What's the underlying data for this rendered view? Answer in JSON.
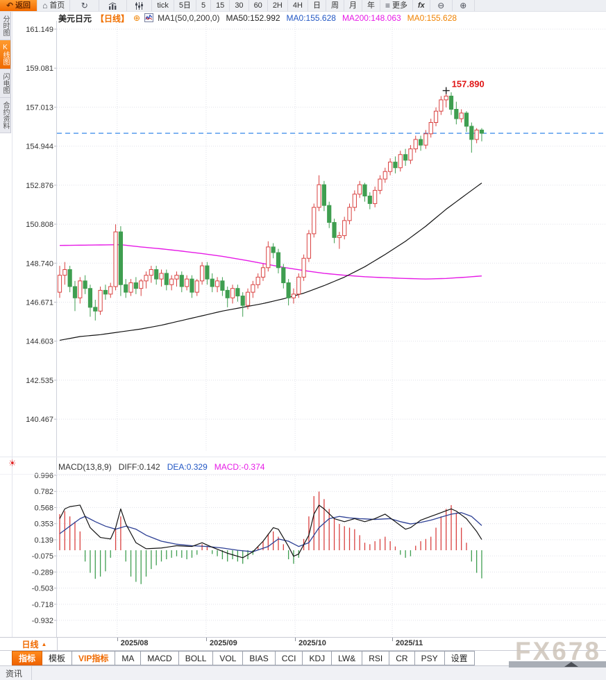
{
  "toolbar": {
    "back": "返回",
    "home": "首页",
    "periods": [
      "tick",
      "5日",
      "5",
      "15",
      "30",
      "60",
      "2H",
      "4H",
      "日",
      "周",
      "月",
      "年"
    ],
    "more": "更多",
    "fx": "fx"
  },
  "sidebar": {
    "tabs": [
      {
        "label": "分时图",
        "active": false
      },
      {
        "label": "K线图",
        "active": true
      },
      {
        "label": "闪电图",
        "active": false
      },
      {
        "label": "合约资料",
        "active": false
      }
    ]
  },
  "header": {
    "symbol": "美元日元",
    "period": "【日线】",
    "ma_items": [
      {
        "text": "MA1(50,0,200,0)",
        "color": "#333333"
      },
      {
        "text": "MA50:152.992",
        "color": "#222222"
      },
      {
        "text": "MA0:155.628",
        "color": "#2257c4"
      },
      {
        "text": "MA200:148.063",
        "color": "#e61ae6"
      },
      {
        "text": "MA0:155.628",
        "color": "#f08200"
      }
    ]
  },
  "macd_header": {
    "items": [
      {
        "text": "MACD(13,8,9)",
        "color": "#333333"
      },
      {
        "text": "DIFF:0.142",
        "color": "#333333"
      },
      {
        "text": "DEA:0.329",
        "color": "#2257c4"
      },
      {
        "text": "MACD:-0.374",
        "color": "#e61ae6"
      }
    ]
  },
  "xaxis": {
    "period_label": "日线",
    "months": [
      {
        "label": "2025/08",
        "i": 11.3
      },
      {
        "label": "2025/09",
        "i": 28.8
      },
      {
        "label": "2025/10",
        "i": 46.3
      },
      {
        "label": "2025/11",
        "i": 65.4
      }
    ]
  },
  "indicator_tabs": [
    {
      "label": "指标",
      "state": "active"
    },
    {
      "label": "模板",
      "state": ""
    },
    {
      "label": "VIP指标",
      "state": "vip"
    },
    {
      "label": "MA",
      "state": ""
    },
    {
      "label": "MACD",
      "state": ""
    },
    {
      "label": "BOLL",
      "state": ""
    },
    {
      "label": "VOL",
      "state": ""
    },
    {
      "label": "BIAS",
      "state": ""
    },
    {
      "label": "CCI",
      "state": ""
    },
    {
      "label": "KDJ",
      "state": ""
    },
    {
      "label": "LW&",
      "state": ""
    },
    {
      "label": "RSI",
      "state": ""
    },
    {
      "label": "CR",
      "state": ""
    },
    {
      "label": "PSY",
      "state": ""
    },
    {
      "label": "设置",
      "state": ""
    }
  ],
  "bottom": {
    "news": "资讯",
    "watermark": "FX678"
  },
  "chart_data": {
    "type": "candlestick+macd",
    "title": "美元日元 日线 (USD/JPY daily)",
    "price_ticks": [
      "161.149",
      "159.081",
      "157.013",
      "154.944",
      "152.876",
      "150.808",
      "148.740",
      "146.671",
      "144.603",
      "142.535",
      "140.467"
    ],
    "current_price": 155.628,
    "peak_label": "157.890",
    "peak_index": 76,
    "peak_price": 157.89,
    "colors": {
      "up": "#d9403f",
      "down": "#3f9e50",
      "ma50": "#111111",
      "ma200": "#e61ae6",
      "diff": "#111111",
      "dea": "#2c3f94",
      "current": "#1d7be5"
    },
    "candles": [
      [
        147.2,
        148.6,
        146.9,
        148.1
      ],
      [
        148.1,
        148.8,
        147.6,
        148.4
      ],
      [
        148.4,
        148.6,
        147.2,
        147.5
      ],
      [
        147.5,
        147.8,
        146.2,
        146.9
      ],
      [
        146.9,
        148.0,
        146.6,
        147.8
      ],
      [
        147.8,
        148.1,
        147.1,
        147.4
      ],
      [
        147.4,
        147.6,
        145.9,
        146.4
      ],
      [
        146.4,
        146.8,
        145.7,
        146.2
      ],
      [
        146.2,
        147.5,
        146.0,
        147.3
      ],
      [
        147.3,
        147.6,
        146.8,
        147.1
      ],
      [
        147.1,
        147.7,
        146.9,
        147.5
      ],
      [
        147.5,
        150.8,
        147.3,
        150.4
      ],
      [
        150.4,
        150.7,
        147.0,
        147.6
      ],
      [
        147.6,
        147.9,
        146.9,
        147.2
      ],
      [
        147.2,
        147.9,
        147.0,
        147.7
      ],
      [
        147.7,
        148.0,
        147.1,
        147.4
      ],
      [
        147.4,
        147.9,
        147.0,
        147.8
      ],
      [
        147.8,
        148.3,
        147.4,
        148.1
      ],
      [
        148.1,
        148.6,
        147.7,
        148.4
      ],
      [
        148.4,
        148.6,
        147.6,
        147.9
      ],
      [
        147.9,
        148.4,
        147.5,
        148.2
      ],
      [
        148.2,
        148.4,
        147.3,
        147.6
      ],
      [
        147.6,
        148.1,
        147.3,
        147.9
      ],
      [
        147.9,
        148.3,
        147.5,
        148.1
      ],
      [
        148.1,
        148.3,
        147.2,
        147.5
      ],
      [
        147.5,
        148.1,
        147.3,
        147.9
      ],
      [
        147.9,
        148.1,
        146.9,
        147.2
      ],
      [
        147.2,
        147.9,
        147.0,
        147.8
      ],
      [
        147.8,
        148.8,
        147.6,
        148.6
      ],
      [
        148.6,
        148.8,
        147.6,
        147.9
      ],
      [
        147.9,
        148.2,
        147.2,
        147.5
      ],
      [
        147.5,
        148.0,
        147.2,
        147.8
      ],
      [
        147.8,
        148.0,
        147.0,
        147.3
      ],
      [
        147.3,
        147.5,
        146.4,
        146.9
      ],
      [
        146.9,
        147.6,
        146.6,
        147.4
      ],
      [
        147.4,
        147.6,
        146.7,
        147.0
      ],
      [
        147.0,
        147.2,
        145.9,
        146.5
      ],
      [
        146.5,
        147.4,
        146.3,
        147.2
      ],
      [
        147.2,
        147.8,
        146.9,
        147.6
      ],
      [
        147.6,
        148.2,
        147.4,
        148.0
      ],
      [
        148.0,
        148.7,
        147.8,
        148.5
      ],
      [
        148.5,
        149.9,
        148.3,
        149.6
      ],
      [
        149.6,
        149.8,
        149.0,
        149.3
      ],
      [
        149.3,
        149.5,
        148.2,
        148.5
      ],
      [
        148.5,
        148.7,
        147.4,
        147.7
      ],
      [
        147.7,
        147.9,
        146.5,
        146.9
      ],
      [
        146.9,
        147.4,
        146.6,
        147.1
      ],
      [
        147.1,
        148.2,
        146.9,
        148.0
      ],
      [
        148.0,
        149.2,
        147.8,
        149.0
      ],
      [
        149.0,
        150.5,
        148.8,
        150.3
      ],
      [
        150.3,
        151.9,
        150.1,
        151.7
      ],
      [
        151.7,
        153.4,
        151.5,
        152.9
      ],
      [
        152.9,
        153.1,
        151.5,
        151.8
      ],
      [
        151.8,
        152.0,
        150.6,
        150.9
      ],
      [
        150.9,
        151.1,
        149.8,
        150.1
      ],
      [
        150.1,
        150.4,
        149.5,
        150.2
      ],
      [
        150.2,
        151.2,
        150.0,
        151.0
      ],
      [
        151.0,
        151.9,
        150.8,
        151.7
      ],
      [
        151.7,
        152.6,
        151.5,
        152.4
      ],
      [
        152.4,
        153.1,
        152.2,
        152.9
      ],
      [
        152.9,
        153.0,
        152.0,
        152.3
      ],
      [
        152.3,
        152.5,
        151.6,
        151.9
      ],
      [
        151.9,
        152.8,
        151.7,
        152.6
      ],
      [
        152.6,
        153.4,
        152.4,
        153.2
      ],
      [
        153.2,
        153.8,
        153.0,
        153.6
      ],
      [
        153.6,
        154.3,
        153.4,
        154.1
      ],
      [
        154.1,
        154.4,
        153.5,
        153.8
      ],
      [
        153.8,
        154.7,
        153.6,
        154.5
      ],
      [
        154.5,
        154.8,
        153.9,
        154.2
      ],
      [
        154.2,
        155.0,
        154.0,
        154.8
      ],
      [
        154.8,
        155.5,
        154.6,
        155.3
      ],
      [
        155.3,
        155.5,
        154.7,
        155.0
      ],
      [
        155.0,
        155.8,
        154.8,
        155.6
      ],
      [
        155.6,
        156.4,
        155.4,
        156.2
      ],
      [
        156.2,
        157.0,
        156.0,
        156.8
      ],
      [
        156.8,
        157.6,
        156.6,
        157.4
      ],
      [
        157.4,
        157.89,
        157.0,
        157.6
      ],
      [
        157.6,
        157.8,
        156.6,
        156.9
      ],
      [
        156.9,
        157.3,
        156.1,
        156.4
      ],
      [
        156.4,
        156.9,
        156.2,
        156.7
      ],
      [
        156.7,
        156.8,
        155.7,
        156.0
      ],
      [
        156.0,
        156.2,
        154.6,
        155.3
      ],
      [
        155.3,
        155.9,
        155.1,
        155.8
      ],
      [
        155.8,
        155.9,
        155.2,
        155.628
      ]
    ],
    "ma50_anchors": [
      [
        0,
        144.65
      ],
      [
        4,
        144.85
      ],
      [
        8,
        144.95
      ],
      [
        12,
        145.1
      ],
      [
        16,
        145.25
      ],
      [
        20,
        145.45
      ],
      [
        24,
        145.7
      ],
      [
        28,
        145.95
      ],
      [
        32,
        146.2
      ],
      [
        36,
        146.4
      ],
      [
        40,
        146.6
      ],
      [
        44,
        146.85
      ],
      [
        48,
        147.15
      ],
      [
        52,
        147.55
      ],
      [
        56,
        148.0
      ],
      [
        60,
        148.55
      ],
      [
        64,
        149.2
      ],
      [
        68,
        149.9
      ],
      [
        72,
        150.7
      ],
      [
        76,
        151.6
      ],
      [
        80,
        152.4
      ],
      [
        83,
        152.992
      ]
    ],
    "ma200_anchors": [
      [
        0,
        149.68
      ],
      [
        6,
        149.7
      ],
      [
        12,
        149.72
      ],
      [
        16,
        149.6
      ],
      [
        20,
        149.5
      ],
      [
        24,
        149.38
      ],
      [
        28,
        149.25
      ],
      [
        32,
        149.1
      ],
      [
        36,
        148.92
      ],
      [
        40,
        148.72
      ],
      [
        44,
        148.52
      ],
      [
        48,
        148.35
      ],
      [
        52,
        148.2
      ],
      [
        56,
        148.1
      ],
      [
        60,
        148.02
      ],
      [
        64,
        147.97
      ],
      [
        68,
        147.93
      ],
      [
        72,
        147.9
      ],
      [
        76,
        147.93
      ],
      [
        80,
        148.0
      ],
      [
        83,
        148.063
      ]
    ],
    "macd": {
      "ticks": [
        "0.996",
        "0.782",
        "0.568",
        "0.353",
        "0.139",
        "-0.075",
        "-0.289",
        "-0.503",
        "-0.718",
        "-0.932"
      ],
      "hist": [
        0.48,
        0.52,
        0.45,
        0.38,
        0.25,
        -0.15,
        -0.3,
        -0.38,
        -0.35,
        -0.28,
        -0.1,
        0.28,
        0.45,
        -0.15,
        -0.35,
        -0.42,
        -0.45,
        -0.35,
        -0.25,
        -0.2,
        -0.15,
        -0.12,
        -0.1,
        -0.08,
        -0.1,
        -0.12,
        -0.1,
        -0.06,
        0.08,
        0.05,
        -0.05,
        -0.08,
        -0.12,
        -0.15,
        -0.12,
        -0.15,
        -0.18,
        -0.12,
        -0.06,
        0.05,
        0.12,
        0.22,
        0.25,
        0.18,
        0.08,
        -0.12,
        -0.18,
        -0.1,
        0.15,
        0.45,
        0.72,
        0.78,
        0.68,
        0.55,
        0.42,
        0.35,
        0.32,
        0.3,
        0.28,
        0.2,
        0.1,
        0.08,
        0.12,
        0.15,
        0.18,
        0.12,
        0.05,
        -0.06,
        -0.1,
        -0.08,
        0.06,
        0.12,
        0.15,
        0.18,
        0.3,
        0.45,
        0.55,
        0.6,
        0.5,
        0.3,
        0.1,
        -0.15,
        -0.3,
        -0.374
      ],
      "diff_anchors": [
        [
          0,
          0.42
        ],
        [
          1,
          0.55
        ],
        [
          2,
          0.58
        ],
        [
          4,
          0.6
        ],
        [
          6,
          0.3
        ],
        [
          8,
          0.17
        ],
        [
          10,
          0.15
        ],
        [
          11,
          0.3
        ],
        [
          12,
          0.55
        ],
        [
          13,
          0.35
        ],
        [
          15,
          0.1
        ],
        [
          17,
          0.02
        ],
        [
          20,
          0.03
        ],
        [
          23,
          0.06
        ],
        [
          26,
          0.05
        ],
        [
          28,
          0.1
        ],
        [
          30,
          0.04
        ],
        [
          33,
          -0.04
        ],
        [
          36,
          -0.1
        ],
        [
          38,
          -0.02
        ],
        [
          40,
          0.12
        ],
        [
          42,
          0.3
        ],
        [
          43,
          0.28
        ],
        [
          45,
          0.05
        ],
        [
          46,
          -0.08
        ],
        [
          47,
          -0.05
        ],
        [
          49,
          0.2
        ],
        [
          50,
          0.48
        ],
        [
          51,
          0.6
        ],
        [
          52,
          0.55
        ],
        [
          54,
          0.42
        ],
        [
          56,
          0.38
        ],
        [
          58,
          0.42
        ],
        [
          60,
          0.38
        ],
        [
          62,
          0.42
        ],
        [
          64,
          0.48
        ],
        [
          66,
          0.38
        ],
        [
          68,
          0.28
        ],
        [
          69,
          0.3
        ],
        [
          71,
          0.4
        ],
        [
          73,
          0.45
        ],
        [
          75,
          0.5
        ],
        [
          77,
          0.55
        ],
        [
          78,
          0.52
        ],
        [
          80,
          0.42
        ],
        [
          82,
          0.25
        ],
        [
          83,
          0.142
        ]
      ],
      "dea_anchors": [
        [
          0,
          0.22
        ],
        [
          2,
          0.32
        ],
        [
          4,
          0.42
        ],
        [
          5,
          0.45
        ],
        [
          7,
          0.38
        ],
        [
          9,
          0.32
        ],
        [
          11,
          0.28
        ],
        [
          13,
          0.32
        ],
        [
          15,
          0.28
        ],
        [
          17,
          0.2
        ],
        [
          20,
          0.12
        ],
        [
          23,
          0.08
        ],
        [
          26,
          0.06
        ],
        [
          29,
          0.05
        ],
        [
          32,
          0.03
        ],
        [
          35,
          0.0
        ],
        [
          38,
          -0.02
        ],
        [
          41,
          0.05
        ],
        [
          43,
          0.15
        ],
        [
          45,
          0.12
        ],
        [
          47,
          0.05
        ],
        [
          49,
          0.1
        ],
        [
          51,
          0.3
        ],
        [
          53,
          0.42
        ],
        [
          55,
          0.45
        ],
        [
          57,
          0.43
        ],
        [
          59,
          0.42
        ],
        [
          62,
          0.41
        ],
        [
          65,
          0.42
        ],
        [
          67,
          0.38
        ],
        [
          69,
          0.35
        ],
        [
          71,
          0.37
        ],
        [
          73,
          0.4
        ],
        [
          75,
          0.44
        ],
        [
          77,
          0.48
        ],
        [
          79,
          0.5
        ],
        [
          81,
          0.45
        ],
        [
          83,
          0.329
        ]
      ]
    }
  }
}
